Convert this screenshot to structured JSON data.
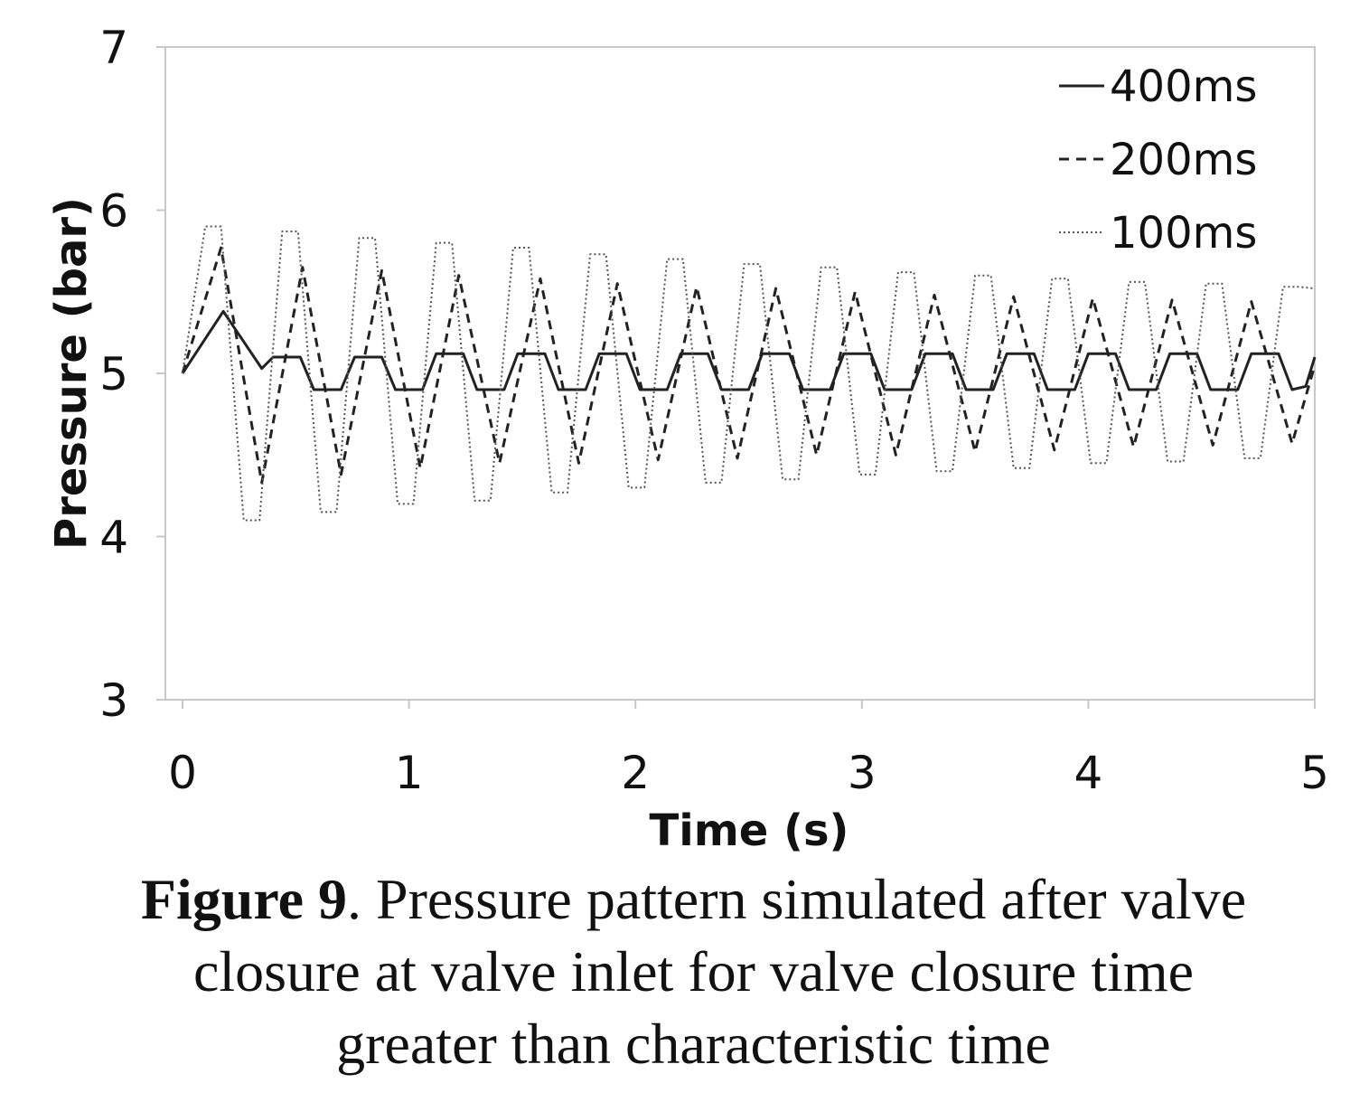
{
  "chart_data": {
    "type": "line",
    "title": "",
    "xlabel": "Time (s)",
    "ylabel": "Pressure (bar)",
    "xlim": [
      0,
      5
    ],
    "ylim": [
      3,
      7
    ],
    "xticks": [
      "0",
      "1",
      "2",
      "3",
      "4",
      "5"
    ],
    "yticks": [
      "3",
      "4",
      "5",
      "6",
      "7"
    ],
    "legend_position": "top-right",
    "grid": false,
    "series": [
      {
        "name": "400ms",
        "style": "solid",
        "color": "#222222",
        "points": [
          [
            0,
            5.0
          ],
          [
            0.18,
            5.38
          ],
          [
            0.35,
            5.03
          ],
          [
            0.4,
            5.1
          ],
          [
            0.52,
            5.1
          ],
          [
            0.58,
            4.9
          ],
          [
            0.7,
            4.9
          ],
          [
            0.76,
            5.1
          ],
          [
            0.88,
            5.1
          ],
          [
            0.94,
            4.9
          ],
          [
            1.06,
            4.9
          ],
          [
            1.12,
            5.12
          ],
          [
            1.24,
            5.12
          ],
          [
            1.3,
            4.9
          ],
          [
            1.42,
            4.9
          ],
          [
            1.48,
            5.12
          ],
          [
            1.6,
            5.12
          ],
          [
            1.66,
            4.9
          ],
          [
            1.78,
            4.9
          ],
          [
            1.84,
            5.12
          ],
          [
            1.96,
            5.12
          ],
          [
            2.02,
            4.9
          ],
          [
            2.14,
            4.9
          ],
          [
            2.2,
            5.12
          ],
          [
            2.32,
            5.12
          ],
          [
            2.38,
            4.9
          ],
          [
            2.5,
            4.9
          ],
          [
            2.56,
            5.12
          ],
          [
            2.68,
            5.12
          ],
          [
            2.74,
            4.9
          ],
          [
            2.86,
            4.9
          ],
          [
            2.92,
            5.12
          ],
          [
            3.04,
            5.12
          ],
          [
            3.1,
            4.9
          ],
          [
            3.22,
            4.9
          ],
          [
            3.28,
            5.12
          ],
          [
            3.4,
            5.12
          ],
          [
            3.46,
            4.9
          ],
          [
            3.58,
            4.9
          ],
          [
            3.64,
            5.12
          ],
          [
            3.76,
            5.12
          ],
          [
            3.82,
            4.9
          ],
          [
            3.94,
            4.9
          ],
          [
            4.0,
            5.12
          ],
          [
            4.12,
            5.12
          ],
          [
            4.18,
            4.9
          ],
          [
            4.3,
            4.9
          ],
          [
            4.36,
            5.12
          ],
          [
            4.48,
            5.12
          ],
          [
            4.54,
            4.9
          ],
          [
            4.66,
            4.9
          ],
          [
            4.72,
            5.12
          ],
          [
            4.84,
            5.12
          ],
          [
            4.9,
            4.9
          ],
          [
            4.96,
            4.92
          ],
          [
            5.0,
            5.1
          ]
        ]
      },
      {
        "name": "200ms",
        "style": "dashed",
        "color": "#222222",
        "points": [
          [
            0,
            5.0
          ],
          [
            0.17,
            5.77
          ],
          [
            0.35,
            4.33
          ],
          [
            0.53,
            5.65
          ],
          [
            0.7,
            4.38
          ],
          [
            0.88,
            5.63
          ],
          [
            1.05,
            4.42
          ],
          [
            1.22,
            5.6
          ],
          [
            1.4,
            4.45
          ],
          [
            1.58,
            5.58
          ],
          [
            1.75,
            4.45
          ],
          [
            1.92,
            5.55
          ],
          [
            2.1,
            4.47
          ],
          [
            2.27,
            5.53
          ],
          [
            2.45,
            4.48
          ],
          [
            2.62,
            5.52
          ],
          [
            2.8,
            4.5
          ],
          [
            2.97,
            5.5
          ],
          [
            3.15,
            4.5
          ],
          [
            3.32,
            5.48
          ],
          [
            3.5,
            4.52
          ],
          [
            3.67,
            5.47
          ],
          [
            3.85,
            4.53
          ],
          [
            4.02,
            5.46
          ],
          [
            4.2,
            4.55
          ],
          [
            4.37,
            5.45
          ],
          [
            4.55,
            4.56
          ],
          [
            4.72,
            5.44
          ],
          [
            4.9,
            4.57
          ],
          [
            5.0,
            5.05
          ]
        ]
      },
      {
        "name": "100ms",
        "style": "dotted",
        "color": "#555555",
        "points": [
          [
            0,
            5.0
          ],
          [
            0.1,
            5.9
          ],
          [
            0.17,
            5.9
          ],
          [
            0.27,
            4.1
          ],
          [
            0.34,
            4.1
          ],
          [
            0.44,
            5.87
          ],
          [
            0.51,
            5.87
          ],
          [
            0.61,
            4.15
          ],
          [
            0.68,
            4.15
          ],
          [
            0.78,
            5.83
          ],
          [
            0.85,
            5.83
          ],
          [
            0.95,
            4.2
          ],
          [
            1.02,
            4.2
          ],
          [
            1.12,
            5.8
          ],
          [
            1.19,
            5.8
          ],
          [
            1.29,
            4.22
          ],
          [
            1.36,
            4.22
          ],
          [
            1.46,
            5.77
          ],
          [
            1.53,
            5.77
          ],
          [
            1.63,
            4.27
          ],
          [
            1.7,
            4.27
          ],
          [
            1.8,
            5.73
          ],
          [
            1.87,
            5.73
          ],
          [
            1.97,
            4.3
          ],
          [
            2.04,
            4.3
          ],
          [
            2.14,
            5.7
          ],
          [
            2.21,
            5.7
          ],
          [
            2.31,
            4.33
          ],
          [
            2.38,
            4.33
          ],
          [
            2.48,
            5.67
          ],
          [
            2.55,
            5.67
          ],
          [
            2.65,
            4.35
          ],
          [
            2.72,
            4.35
          ],
          [
            2.82,
            5.65
          ],
          [
            2.89,
            5.65
          ],
          [
            2.99,
            4.38
          ],
          [
            3.06,
            4.38
          ],
          [
            3.16,
            5.62
          ],
          [
            3.23,
            5.62
          ],
          [
            3.33,
            4.4
          ],
          [
            3.4,
            4.4
          ],
          [
            3.5,
            5.6
          ],
          [
            3.57,
            5.6
          ],
          [
            3.67,
            4.42
          ],
          [
            3.74,
            4.42
          ],
          [
            3.84,
            5.58
          ],
          [
            3.91,
            5.58
          ],
          [
            4.01,
            4.45
          ],
          [
            4.08,
            4.45
          ],
          [
            4.18,
            5.56
          ],
          [
            4.25,
            5.56
          ],
          [
            4.35,
            4.46
          ],
          [
            4.42,
            4.46
          ],
          [
            4.52,
            5.55
          ],
          [
            4.59,
            5.55
          ],
          [
            4.69,
            4.48
          ],
          [
            4.76,
            4.48
          ],
          [
            4.86,
            5.53
          ],
          [
            4.93,
            5.53
          ],
          [
            5.0,
            5.52
          ]
        ]
      }
    ]
  },
  "caption": {
    "label": "Figure 9",
    "line1": ". Pressure pattern simulated after valve",
    "line2": "closure at valve inlet for valve closure time",
    "line3": "greater than characteristic time"
  }
}
